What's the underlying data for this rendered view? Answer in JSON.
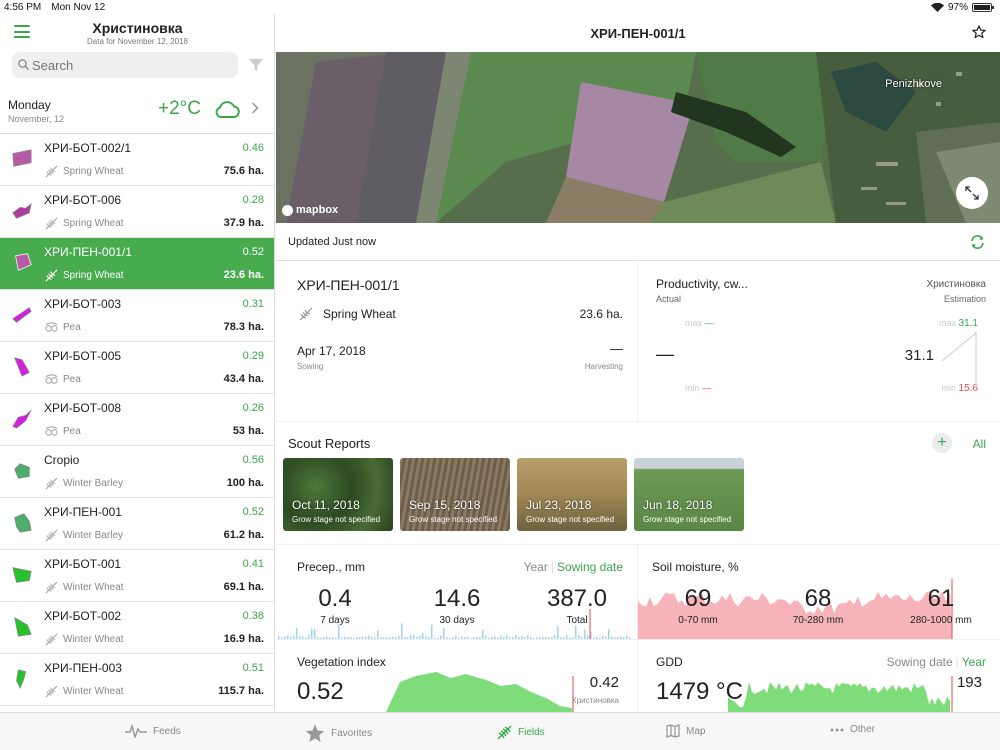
{
  "status": {
    "time": "4:56 PM",
    "date": "Mon Nov 12",
    "battery": "97%",
    "battery_level": 0.97
  },
  "sidebar": {
    "title": "Христиновка",
    "subtitle": "Data for November 12, 2018",
    "search_placeholder": "Search",
    "weather": {
      "day": "Monday",
      "date": "November, 12",
      "temp": "+2°C",
      "icon": "cloud-icon"
    },
    "fields": [
      {
        "name": "ХРИ-БОТ-002/1",
        "ndvi": "0.46",
        "crop": "Spring Wheat",
        "crop_icon": "wheat-icon",
        "area": "75.6 ha.",
        "color": "#b65aa6",
        "active": false
      },
      {
        "name": "ХРИ-БОТ-006",
        "ndvi": "0.28",
        "crop": "Spring Wheat",
        "crop_icon": "wheat-icon",
        "area": "37.9 ha.",
        "color": "#b0399e",
        "active": false
      },
      {
        "name": "ХРИ-ПЕН-001/1",
        "ndvi": "0.52",
        "crop": "Spring Wheat",
        "crop_icon": "wheat-icon",
        "area": "23.6 ha.",
        "color": "#b65aa6",
        "active": true
      },
      {
        "name": "ХРИ-БОТ-003",
        "ndvi": "0.31",
        "crop": "Pea",
        "crop_icon": "pea-icon",
        "area": "78.3 ha.",
        "color": "#d41fdf",
        "active": false
      },
      {
        "name": "ХРИ-БОТ-005",
        "ndvi": "0.29",
        "crop": "Pea",
        "crop_icon": "pea-icon",
        "area": "43.4 ha.",
        "color": "#d41fdf",
        "active": false
      },
      {
        "name": "ХРИ-БОТ-008",
        "ndvi": "0.26",
        "crop": "Pea",
        "crop_icon": "pea-icon",
        "area": "53 ha.",
        "color": "#d41fdf",
        "active": false
      },
      {
        "name": "Cropio",
        "ndvi": "0.56",
        "crop": "Winter Barley",
        "crop_icon": "wheat-icon",
        "area": "100 ha.",
        "color": "#4cae6a",
        "active": false
      },
      {
        "name": "ХРИ-ПЕН-001",
        "ndvi": "0.52",
        "crop": "Winter Barley",
        "crop_icon": "wheat-icon",
        "area": "61.2 ha.",
        "color": "#4cae6a",
        "active": false
      },
      {
        "name": "ХРИ-БОТ-001",
        "ndvi": "0.41",
        "crop": "Winter Wheat",
        "crop_icon": "wheat-icon",
        "area": "69.1 ha.",
        "color": "#27c22a",
        "active": false
      },
      {
        "name": "ХРИ-БОТ-002",
        "ndvi": "0.38",
        "crop": "Winter Wheat",
        "crop_icon": "wheat-icon",
        "area": "16.9 ha.",
        "color": "#27c22a",
        "active": false
      },
      {
        "name": "ХРИ-ПЕН-003",
        "ndvi": "0.51",
        "crop": "Winter Wheat",
        "crop_icon": "wheat-icon",
        "area": "115.7 ha.",
        "color": "#27c22a",
        "active": false
      }
    ]
  },
  "main": {
    "title": "ХРИ-ПЕН-001/1",
    "map": {
      "village": "Penizhkove",
      "attribution": "mapbox"
    },
    "updated": "Updated Just now",
    "info": {
      "name": "ХРИ-ПЕН-001/1",
      "crop": "Spring Wheat",
      "area": "23.6 ha.",
      "sowing_date": "Apr 17, 2018",
      "sowing_label": "Sowing",
      "harvest_value": "—",
      "harvest_label": "Harvesting"
    },
    "productivity": {
      "title": "Productivity, cw...",
      "actual_label": "Actual",
      "region": "Христиновка",
      "estimation_label": "Estimation",
      "actual_value": "—",
      "estimation_value": "31.1",
      "max_label": "max",
      "min_label": "min",
      "actual_max": "—",
      "actual_min": "—",
      "est_max": "31.1",
      "est_min": "15.6"
    },
    "scout": {
      "title": "Scout Reports",
      "add": "+",
      "all_label": "All",
      "reports": [
        {
          "date": "Oct 11, 2018",
          "stage": "Grow stage not specified"
        },
        {
          "date": "Sep 15, 2018",
          "stage": "Grow stage not specified"
        },
        {
          "date": "Jul 23, 2018",
          "stage": "Grow stage not specified"
        },
        {
          "date": "Jun 18, 2018",
          "stage": "Grow stage not specified"
        }
      ]
    },
    "precip": {
      "title": "Precep., mm",
      "tab_year": "Year",
      "tab_sowing": "Sowing date",
      "stats": [
        {
          "value": "0.4",
          "label": "7 days"
        },
        {
          "value": "14.6",
          "label": "30 days"
        },
        {
          "value": "387.0",
          "label": "Total"
        }
      ]
    },
    "soil": {
      "title": "Soil moisture, %",
      "stats": [
        {
          "value": "69",
          "label": "0-70 mm"
        },
        {
          "value": "68",
          "label": "70-280 mm"
        },
        {
          "value": "61",
          "label": "280-1000 mm"
        }
      ]
    },
    "veg": {
      "title": "Vegetation index",
      "value": "0.52",
      "region_value": "0.42",
      "region": "Христиновка"
    },
    "gdd": {
      "title": "GDD",
      "tab_sowing": "Sowing date",
      "tab_year": "Year",
      "value": "1479 °C",
      "region_value": "193"
    }
  },
  "tabbar": [
    {
      "label": "Feeds",
      "icon": "pulse-icon",
      "active": false
    },
    {
      "label": "Favorites",
      "icon": "star-icon",
      "active": false
    },
    {
      "label": "Fields",
      "icon": "leaf-icon",
      "active": true
    },
    {
      "label": "Map",
      "icon": "map-icon",
      "active": false
    },
    {
      "label": "Other",
      "icon": "dots-icon",
      "active": false
    }
  ],
  "colors": {
    "accent": "#3aa84a",
    "active_row": "#48ac4f",
    "min_red": "#e34a4a",
    "soil_chart": "#f7b3ba",
    "veg_chart": "#7fdc7b",
    "precip_chart": "#9fd5ee"
  }
}
